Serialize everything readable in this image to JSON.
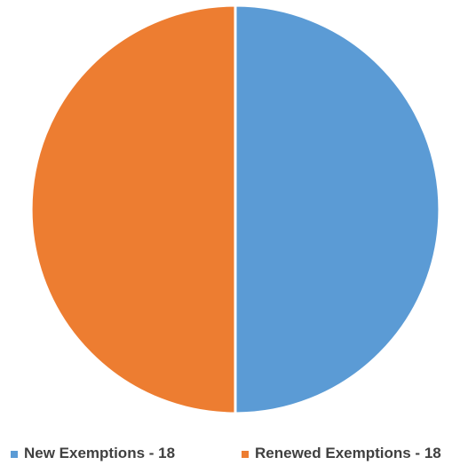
{
  "chart_data": {
    "type": "pie",
    "categories": [
      "New Exemptions - 18",
      "Renewed Exemptions - 18"
    ],
    "values": [
      18,
      18
    ],
    "colors": [
      "#5b9bd5",
      "#ed7d31"
    ],
    "start_angle": "12 o'clock",
    "direction": "clockwise",
    "legend_position": "bottom",
    "title": ""
  }
}
